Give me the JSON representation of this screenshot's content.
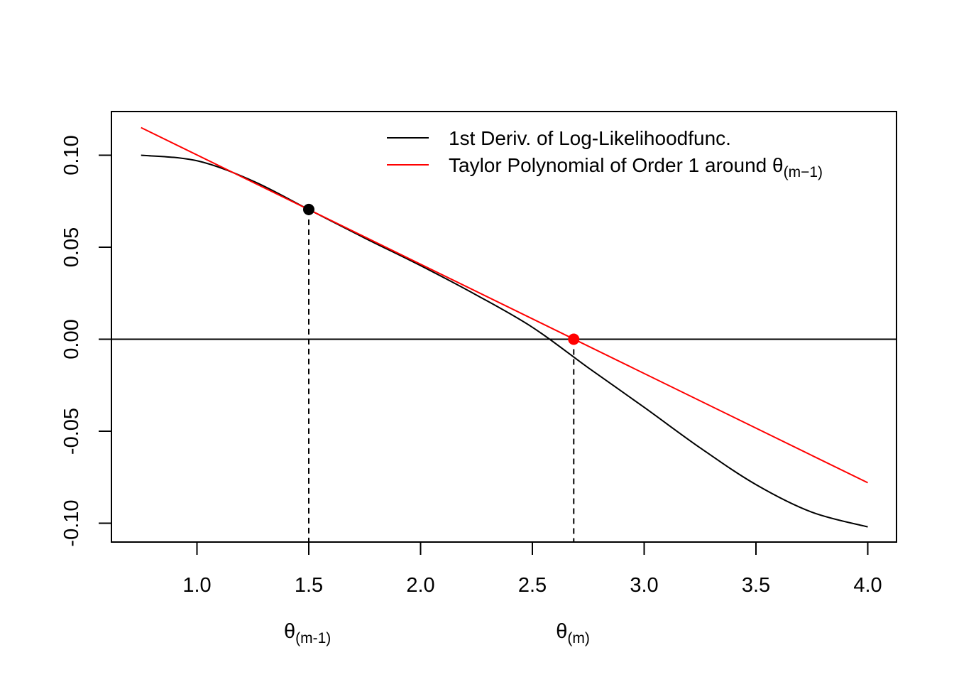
{
  "chart_data": {
    "type": "line",
    "title": "",
    "xlabel": "",
    "ylabel": "",
    "xlim": [
      0.75,
      4.0
    ],
    "ylim": [
      -0.1,
      0.1
    ],
    "x_ticks": [
      1.0,
      1.5,
      2.0,
      2.5,
      3.0,
      3.5,
      4.0
    ],
    "x_tick_labels": [
      "1.0",
      "1.5",
      "2.0",
      "2.5",
      "3.0",
      "3.5",
      "4.0"
    ],
    "y_ticks": [
      -0.1,
      -0.05,
      0.0,
      0.05,
      0.1
    ],
    "y_tick_labels": [
      "-0.10",
      "-0.05",
      "0.00",
      "0.05",
      "0.10"
    ],
    "grid": false,
    "legend_position": "top-right",
    "series": [
      {
        "name": "1st Deriv. of Log-Likelihoodfunc.",
        "color": "#000000",
        "x": [
          0.75,
          1.0,
          1.25,
          1.5,
          1.75,
          2.0,
          2.25,
          2.5,
          2.75,
          3.0,
          3.25,
          3.5,
          3.75,
          4.0
        ],
        "y": [
          0.1,
          0.097,
          0.086,
          0.0705,
          0.055,
          0.04,
          0.024,
          0.0065,
          -0.0155,
          -0.037,
          -0.059,
          -0.079,
          -0.094,
          -0.102
        ]
      },
      {
        "name": "Taylor Polynomial of Order 1 around θ",
        "name_subscript": "(m−1)",
        "color": "#ff0000",
        "x": [
          0.75,
          4.0
        ],
        "y": [
          0.115,
          -0.078
        ]
      }
    ],
    "reference_lines": [
      {
        "orientation": "horizontal",
        "y": 0.0,
        "color": "#000000",
        "style": "solid"
      },
      {
        "orientation": "vertical",
        "x": 1.5,
        "y_from": -0.11,
        "y_to": 0.0705,
        "color": "#000000",
        "style": "dashed"
      },
      {
        "orientation": "vertical",
        "x": 2.685,
        "y_from": -0.11,
        "y_to": 0.0,
        "color": "#000000",
        "style": "dashed"
      }
    ],
    "points": [
      {
        "x": 1.5,
        "y": 0.0705,
        "color": "#000000"
      },
      {
        "x": 2.685,
        "y": 0.0,
        "color": "#ff0000"
      }
    ],
    "annotations": [
      {
        "x": 1.5,
        "text": "θ",
        "subscript": "(m-1)"
      },
      {
        "x": 2.685,
        "text": "θ",
        "subscript": "(m)"
      }
    ]
  }
}
